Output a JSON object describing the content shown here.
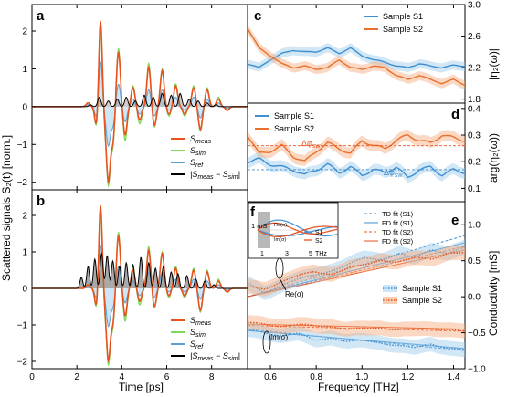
{
  "chart_data": [
    {
      "panel": "a",
      "type": "line",
      "xlim": [
        0,
        9.6
      ],
      "ylim": [
        -2.2,
        2.7
      ],
      "yticks": [
        -2,
        -1,
        0,
        1,
        2
      ],
      "xticks": [
        0,
        2,
        4,
        6,
        8
      ],
      "grid": false,
      "legend_position": "bottom-right",
      "colors": {
        "meas": "#e8521f",
        "sim": "#7ed957",
        "ref": "#5aa3d6",
        "diff": "#000000",
        "fill_green": "#d9f5b5",
        "fill_blue": "#cfe6f6"
      },
      "series": [
        {
          "name": "S_meas",
          "peaks": [
            [
              2.5,
              0.1
            ],
            [
              2.9,
              -0.7
            ],
            [
              3.05,
              2.45
            ],
            [
              3.2,
              -0.4
            ],
            [
              3.4,
              -1.9
            ],
            [
              3.6,
              -0.9
            ],
            [
              3.85,
              1.45
            ],
            [
              4.15,
              -0.75
            ],
            [
              4.5,
              0.5
            ],
            [
              4.8,
              -0.35
            ],
            [
              5.2,
              1.05
            ],
            [
              5.45,
              -0.5
            ],
            [
              5.8,
              0.95
            ],
            [
              6.1,
              -0.2
            ],
            [
              6.4,
              0.55
            ],
            [
              6.8,
              -0.2
            ],
            [
              7.2,
              0.5
            ],
            [
              7.5,
              -0.6
            ],
            [
              7.8,
              0.45
            ],
            [
              8.3,
              0.2
            ],
            [
              8.7,
              -0.1
            ]
          ]
        },
        {
          "name": "S_sim",
          "peaks": [
            [
              2.5,
              0.1
            ],
            [
              2.9,
              -0.75
            ],
            [
              3.05,
              2.3
            ],
            [
              3.2,
              -0.5
            ],
            [
              3.4,
              -2.0
            ],
            [
              3.6,
              -1.0
            ],
            [
              3.85,
              1.55
            ],
            [
              4.15,
              -0.9
            ],
            [
              4.5,
              0.55
            ],
            [
              4.8,
              -0.45
            ],
            [
              5.2,
              1.15
            ],
            [
              5.45,
              -0.55
            ],
            [
              5.8,
              1.0
            ],
            [
              6.1,
              -0.25
            ],
            [
              6.4,
              0.6
            ],
            [
              6.8,
              -0.25
            ],
            [
              7.2,
              0.55
            ],
            [
              7.5,
              -0.65
            ],
            [
              7.8,
              0.5
            ],
            [
              8.3,
              0.25
            ],
            [
              8.7,
              -0.1
            ]
          ]
        },
        {
          "name": "S_ref",
          "peaks": [
            [
              2.5,
              0.05
            ],
            [
              2.9,
              -0.4
            ],
            [
              3.05,
              1.3
            ],
            [
              3.2,
              -0.2
            ],
            [
              3.4,
              -1.0
            ],
            [
              3.6,
              -0.5
            ],
            [
              3.85,
              0.6
            ],
            [
              4.15,
              -0.4
            ],
            [
              4.5,
              0.2
            ],
            [
              4.8,
              -0.2
            ],
            [
              5.2,
              0.45
            ],
            [
              5.45,
              -0.25
            ],
            [
              5.8,
              0.45
            ],
            [
              6.1,
              -0.1
            ],
            [
              6.4,
              0.25
            ],
            [
              6.8,
              -0.1
            ],
            [
              7.2,
              0.25
            ],
            [
              7.5,
              -0.3
            ],
            [
              7.8,
              0.2
            ],
            [
              8.3,
              0.1
            ],
            [
              8.7,
              -0.05
            ]
          ]
        },
        {
          "name": "|S_meas - S_sim|",
          "peaks": [
            [
              2.6,
              0.05
            ],
            [
              3.0,
              0.25
            ],
            [
              3.4,
              0.15
            ],
            [
              3.8,
              0.2
            ],
            [
              4.2,
              0.25
            ],
            [
              4.6,
              0.15
            ],
            [
              5.0,
              0.3
            ],
            [
              5.4,
              0.25
            ],
            [
              5.8,
              0.35
            ],
            [
              6.2,
              0.3
            ],
            [
              6.6,
              0.35
            ],
            [
              7.0,
              0.2
            ],
            [
              7.4,
              0.15
            ],
            [
              7.8,
              0.1
            ],
            [
              8.2,
              0.05
            ]
          ]
        }
      ],
      "legend": [
        "S_meas",
        "S_sim",
        "S_ref",
        "|S_meas − S_sim|"
      ]
    },
    {
      "panel": "b",
      "type": "line",
      "xlim": [
        0,
        9.6
      ],
      "ylim": [
        -2.2,
        2.7
      ],
      "yticks": [
        -2,
        -1,
        0,
        1,
        2
      ],
      "xticks": [
        0,
        2,
        4,
        6,
        8
      ],
      "xlabel": "Time [ps]",
      "shared_ylabel": "Scattered signals S₂(t) [norm.]",
      "grid": false,
      "legend_position": "bottom-right",
      "diff_peaks": [
        [
          2.2,
          0.3
        ],
        [
          2.5,
          0.6
        ],
        [
          2.8,
          0.8
        ],
        [
          3.1,
          0.95
        ],
        [
          3.35,
          0.9
        ],
        [
          3.6,
          0.75
        ],
        [
          3.9,
          0.6
        ],
        [
          4.2,
          0.7
        ],
        [
          4.5,
          0.65
        ],
        [
          4.85,
          0.85
        ],
        [
          5.2,
          0.7
        ],
        [
          5.5,
          0.55
        ],
        [
          5.85,
          0.6
        ],
        [
          6.2,
          0.45
        ],
        [
          6.5,
          0.4
        ],
        [
          6.9,
          0.35
        ],
        [
          7.3,
          0.25
        ],
        [
          7.7,
          0.2
        ],
        [
          8.1,
          0.1
        ]
      ],
      "legend": [
        "S_meas",
        "S_sim",
        "S_ref",
        "|S_meas − S_sim|"
      ]
    },
    {
      "panel": "c",
      "type": "line",
      "xlim": [
        0.5,
        1.45
      ],
      "ylim": [
        1.75,
        3.0
      ],
      "yticks": [
        1.8,
        2.2,
        2.6,
        3.0
      ],
      "ylabel": "|η₂(ω)|",
      "grid": false,
      "legend_position": "top-right",
      "series": [
        {
          "name": "Sample S1",
          "color": "#3d8fd1",
          "x": [
            0.5,
            0.55,
            0.6,
            0.65,
            0.7,
            0.75,
            0.8,
            0.85,
            0.9,
            0.95,
            1.0,
            1.05,
            1.1,
            1.15,
            1.2,
            1.25,
            1.3,
            1.35,
            1.4,
            1.45
          ],
          "y": [
            2.25,
            2.2,
            2.3,
            2.38,
            2.42,
            2.4,
            2.4,
            2.45,
            2.38,
            2.45,
            2.35,
            2.3,
            2.27,
            2.22,
            2.2,
            2.25,
            2.22,
            2.2,
            2.23,
            2.22
          ]
        },
        {
          "name": "Sample S2",
          "color": "#e8702a",
          "x": [
            0.5,
            0.55,
            0.6,
            0.65,
            0.7,
            0.75,
            0.8,
            0.85,
            0.9,
            0.95,
            1.0,
            1.05,
            1.1,
            1.15,
            1.2,
            1.25,
            1.3,
            1.35,
            1.4,
            1.45
          ],
          "y": [
            2.7,
            2.45,
            2.35,
            2.25,
            2.2,
            2.22,
            2.18,
            2.2,
            2.3,
            2.2,
            2.18,
            2.22,
            2.2,
            2.1,
            2.05,
            2.1,
            2.05,
            2.0,
            2.05,
            1.98
          ]
        }
      ]
    },
    {
      "panel": "d",
      "type": "line",
      "xlim": [
        0.5,
        1.45
      ],
      "ylim": [
        0.05,
        0.42
      ],
      "yticks": [
        0.1,
        0.2,
        0.3,
        0.4
      ],
      "ylabel": "arg(η₂(ω))",
      "annotations": [
        "Δφ_sw",
        "Δφ_sw"
      ],
      "hlines": [
        0.26,
        0.17
      ],
      "legend_position": "top-left",
      "series": [
        {
          "name": "Sample S1",
          "color": "#3d8fd1",
          "x": [
            0.5,
            0.55,
            0.6,
            0.65,
            0.7,
            0.75,
            0.8,
            0.85,
            0.9,
            0.95,
            1.0,
            1.05,
            1.1,
            1.15,
            1.2,
            1.25,
            1.3,
            1.35,
            1.4,
            1.45
          ],
          "y": [
            0.2,
            0.21,
            0.19,
            0.18,
            0.17,
            0.15,
            0.17,
            0.19,
            0.16,
            0.18,
            0.15,
            0.17,
            0.16,
            0.18,
            0.14,
            0.17,
            0.18,
            0.15,
            0.17,
            0.16
          ]
        },
        {
          "name": "Sample S2",
          "color": "#e8702a",
          "x": [
            0.5,
            0.55,
            0.6,
            0.65,
            0.7,
            0.75,
            0.8,
            0.85,
            0.9,
            0.95,
            1.0,
            1.05,
            1.1,
            1.15,
            1.2,
            1.25,
            1.3,
            1.35,
            1.4,
            1.45
          ],
          "y": [
            0.3,
            0.23,
            0.24,
            0.26,
            0.22,
            0.2,
            0.24,
            0.27,
            0.25,
            0.23,
            0.28,
            0.26,
            0.25,
            0.28,
            0.3,
            0.28,
            0.27,
            0.3,
            0.29,
            0.28
          ]
        }
      ]
    },
    {
      "panel": "e",
      "type": "line",
      "xlim": [
        0.5,
        1.45
      ],
      "ylim": [
        -1.0,
        1.32
      ],
      "yticks": [
        -1.0,
        -0.5,
        0.0,
        0.5,
        1.0
      ],
      "xticks": [
        0.6,
        0.8,
        1.0,
        1.2,
        1.4
      ],
      "xlabel": "Frequency [THz]",
      "ylabel": "Conductivity [mS]",
      "annotations": [
        "Re(σ)",
        "Im(σ)"
      ],
      "legend": [
        "TD fit (S1)",
        "FD fit (S1)",
        "TD fit (S2)",
        "FD fit (S2)",
        "Sample S1",
        "Sample S2"
      ],
      "series": [
        {
          "name": "TD fit (S1)",
          "color": "#3d8fd1",
          "dash": true,
          "re": [
            0.0,
            0.85
          ],
          "im": [
            -0.45,
            -0.75
          ]
        },
        {
          "name": "FD fit (S1)",
          "color": "#3d8fd1",
          "dash": false,
          "re": [
            0.0,
            0.75
          ],
          "im": [
            -0.47,
            -0.72
          ]
        },
        {
          "name": "TD fit (S2)",
          "color": "#e8521f",
          "dash": true,
          "re": [
            0.0,
            0.7
          ],
          "im": [
            -0.4,
            -0.48
          ]
        },
        {
          "name": "FD fit (S2)",
          "color": "#e8521f",
          "dash": false,
          "re": [
            0.0,
            0.65
          ],
          "im": [
            -0.38,
            -0.45
          ]
        },
        {
          "name": "Sample S1",
          "color": "#3d8fd1",
          "re": [
            0.2,
            0.05,
            0.15,
            0.25,
            0.3,
            0.35,
            0.45,
            0.55,
            0.5,
            0.6,
            0.55,
            0.65,
            0.6,
            0.7
          ],
          "im": [
            -0.45,
            -0.5,
            -0.55,
            -0.5,
            -0.6,
            -0.58,
            -0.62,
            -0.6,
            -0.65,
            -0.68,
            -0.7,
            -0.66,
            -0.72,
            -0.73
          ]
        },
        {
          "name": "Sample S2",
          "color": "#e8521f",
          "re": [
            0.15,
            0.1,
            0.2,
            0.3,
            0.35,
            0.3,
            0.4,
            0.45,
            0.5,
            0.48,
            0.55,
            0.52,
            0.6,
            0.62
          ],
          "im": [
            -0.35,
            -0.38,
            -0.42,
            -0.38,
            -0.4,
            -0.42,
            -0.45,
            -0.43,
            -0.44,
            -0.46,
            -0.44,
            -0.45,
            -0.46,
            -0.47
          ]
        }
      ]
    },
    {
      "panel": "f",
      "type": "line",
      "xticks": [
        1,
        3,
        5
      ],
      "xtick_unit": "THz",
      "ylabel": "1 mS",
      "annotations": [
        "Re(σ)",
        "Im(σ)"
      ],
      "legend": [
        "S1",
        "S2"
      ]
    }
  ],
  "text": {
    "panel_a": "a",
    "panel_b": "b",
    "panel_c": "c",
    "panel_d": "d",
    "panel_e": "e",
    "panel_f": "f",
    "time_label": "Time [ps]",
    "freq_label": "Frequency [THz]",
    "scatter_ylabel": "Scattered signals S₂(t) [norm.]",
    "eta_abs_label": "|η₂(ω)|",
    "eta_arg_label": "arg(η₂(ω))",
    "cond_label": "Conductivity [mS]",
    "leg_meas": "S",
    "leg_meas_sub": "meas",
    "leg_sim": "S",
    "leg_sim_sub": "sim",
    "leg_ref": "S",
    "leg_ref_sub": "ref",
    "leg_diff": "|S",
    "leg_diff_sub1": "meas",
    "leg_diff_mid": " − S",
    "leg_diff_sub2": "sim",
    "leg_diff_end": "|",
    "s1": "Sample S1",
    "s2": "Sample S2",
    "td_s1": "TD fit (S1)",
    "fd_s1": "FD fit (S1)",
    "td_s2": "TD fit (S2)",
    "fd_s2": "FD fit (S2)",
    "dphi": "Δφ",
    "dphi_sub": "sw",
    "re": "Re(σ)",
    "im": "Im(σ)",
    "inset_scale": "1 mS",
    "inset_s1": "S1",
    "inset_s2": "S2",
    "inset_unit": "THz",
    "xt_a": [
      "0",
      "2",
      "4",
      "6",
      "8"
    ],
    "yt_ab": [
      "−2",
      "−1",
      "0",
      "1",
      "2"
    ],
    "xt_f": [
      "0.6",
      "0.8",
      "1.0",
      "1.2",
      "1.4"
    ],
    "yt_c": [
      "3.0",
      "2.6",
      "2.2",
      "1.8"
    ],
    "yt_d": [
      "0.4",
      "0.3",
      "0.2",
      "0.1"
    ],
    "yt_e": [
      "1.0",
      "0.5",
      "0.0",
      "−0.5",
      "−1.0"
    ]
  }
}
